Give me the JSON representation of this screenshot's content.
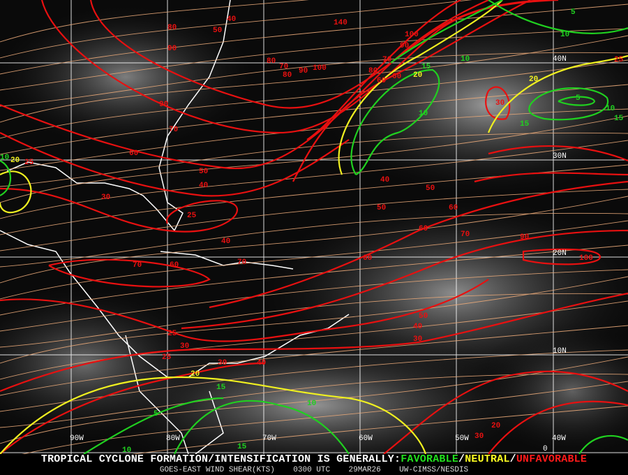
{
  "map": {
    "lon_labels": [
      "90W",
      "80W",
      "70W",
      "60W",
      "50W",
      "40W"
    ],
    "lat_labels": [
      "40N",
      "30N",
      "20N",
      "10N",
      "0"
    ],
    "colors": {
      "unfavorable": "#e81010",
      "neutral": "#f0f020",
      "favorable": "#20d020",
      "streamline": "#e8a878",
      "coast": "#ffffff",
      "grid": "#ffffff"
    },
    "contour_labels": {
      "red": [
        "40",
        "50",
        "80",
        "90",
        "140",
        "100",
        "90",
        "80",
        "70",
        "80",
        "90",
        "100",
        "80",
        "70",
        "60",
        "60",
        "90",
        "70",
        "60",
        "50",
        "40",
        "30",
        "25",
        "40",
        "70",
        "60",
        "70",
        "60",
        "50",
        "40",
        "30",
        "25",
        "30",
        "25",
        "30",
        "40",
        "50",
        "60",
        "60",
        "70",
        "90",
        "100",
        "50",
        "40",
        "30",
        "25",
        "20",
        "30",
        "25"
      ],
      "yellow": [
        "20",
        "20",
        "20",
        "20"
      ],
      "green": [
        "5",
        "10",
        "10",
        "15",
        "10",
        "5",
        "10",
        "15",
        "15",
        "10",
        "15",
        "5",
        "10",
        "15",
        "10"
      ]
    }
  },
  "footer": {
    "headline_prefix": "TROPICAL CYCLONE FORMATION/INTENSIFICATION IS GENERALLY:",
    "favorable": "FAVORABLE",
    "sep1": "/",
    "neutral": "NEUTRAL",
    "sep2": "/",
    "unfavorable": "UNFAVORABLE",
    "product": "GOES-EAST WIND SHEAR(KTS)",
    "time": "0300 UTC",
    "date": "29MAR26",
    "source": "UW-CIMSS/NESDIS"
  }
}
